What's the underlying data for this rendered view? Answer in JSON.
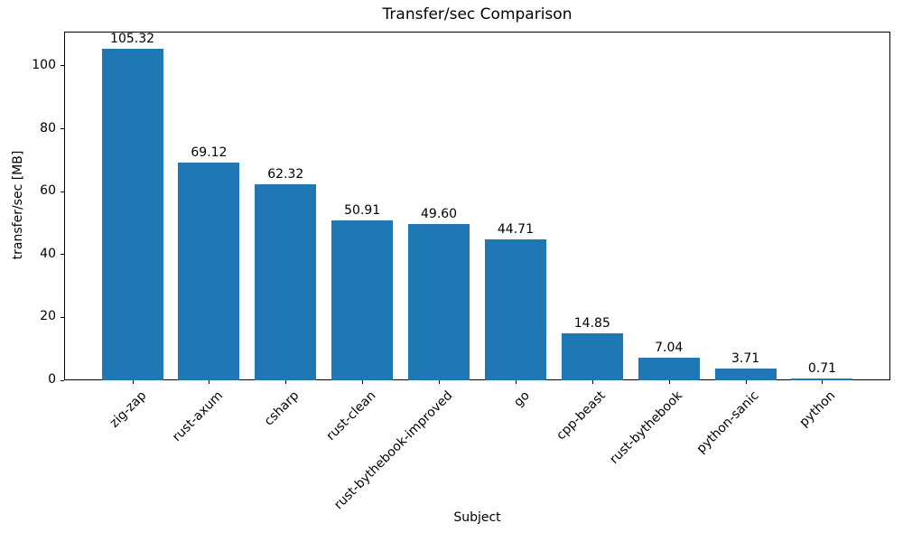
{
  "chart_data": {
    "type": "bar",
    "title": "Transfer/sec Comparison",
    "xlabel": "Subject",
    "ylabel": "transfer/sec [MB]",
    "categories": [
      "zig-zap",
      "rust-axum",
      "csharp",
      "rust-clean",
      "rust-bythebook-improved",
      "go",
      "cpp-beast",
      "rust-bythebook",
      "python-sanic",
      "python"
    ],
    "values": [
      105.32,
      69.12,
      62.32,
      50.91,
      49.6,
      44.71,
      14.85,
      7.04,
      3.71,
      0.71
    ],
    "value_labels": [
      "105.32",
      "69.12",
      "62.32",
      "50.91",
      "49.60",
      "44.71",
      "14.85",
      "7.04",
      "3.71",
      "0.71"
    ],
    "yticks": [
      0,
      20,
      40,
      60,
      80,
      100
    ],
    "ylim": [
      0,
      110.9
    ],
    "bar_color": "#1f77b4",
    "grid": false,
    "legend": "none",
    "x_tick_rotation_deg": 45
  }
}
